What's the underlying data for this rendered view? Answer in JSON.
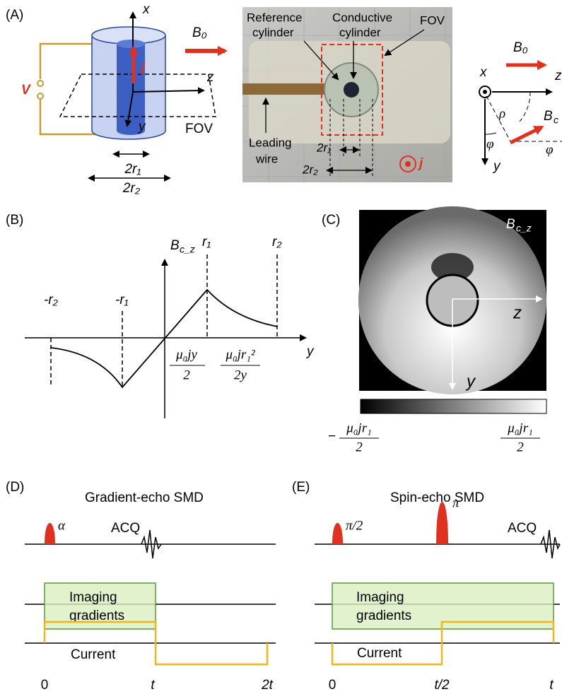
{
  "panel_a": {
    "label": "(A)",
    "diagram": {
      "axis_x": "x",
      "axis_z": "z",
      "axis_y": "y",
      "voltage": "V",
      "current": "j",
      "fov": "FOV",
      "inner_diameter": "2r₁",
      "outer_diameter": "2r₂",
      "field": "B₀"
    },
    "photo": {
      "reference": [
        "Reference",
        "cylinder"
      ],
      "conductive": [
        "Conductive",
        "cylinder"
      ],
      "fov": "FOV",
      "wire": [
        "Leading",
        "wire"
      ],
      "inner_diameter": "2r₁",
      "outer_diameter": "2r₂",
      "current": "j"
    },
    "geometry": {
      "axis_x": "x",
      "field": "B₀",
      "axis_z": "z",
      "axis_y": "y",
      "rho": "ρ",
      "phi_1": "φ",
      "phi_2": "φ",
      "field_c": "B",
      "field_c_sub": "c"
    }
  },
  "panel_b": {
    "label": "(B)",
    "y_label": "B",
    "y_label_sub": "c_z",
    "r1": "r₁",
    "r2": "r₂",
    "neg_r2": "-r₂",
    "neg_r1": "-r₁",
    "x_label": "y",
    "inner_formula": {
      "num": "μ₀jy",
      "den": "2"
    },
    "outer_formula": {
      "num": "μ₀jr₁²",
      "den": "2y"
    }
  },
  "panel_c": {
    "label": "(C)",
    "map_label": "B",
    "map_label_sub": "c_z",
    "axis_z": "z",
    "axis_y": "y",
    "colorbar_min": {
      "sign": "−",
      "num": "μ₀jr₁",
      "den": "2"
    },
    "colorbar_max": {
      "num": "μ₀jr₁",
      "den": "2"
    }
  },
  "panel_d": {
    "label": "(D)",
    "title": "Gradient-echo SMD",
    "pulse": "α",
    "acq": "ACQ",
    "gradients": [
      "Imaging",
      "gradients"
    ],
    "current": "Current",
    "time_ticks": [
      "0",
      "t",
      "2t"
    ]
  },
  "panel_e": {
    "label": "(E)",
    "title": "Spin-echo SMD",
    "pulses": [
      "π/2",
      "π"
    ],
    "acq": "ACQ",
    "gradients": [
      "Imaging",
      "gradients"
    ],
    "current": "Current",
    "time_ticks": [
      "0",
      "t/2",
      "t"
    ]
  }
}
